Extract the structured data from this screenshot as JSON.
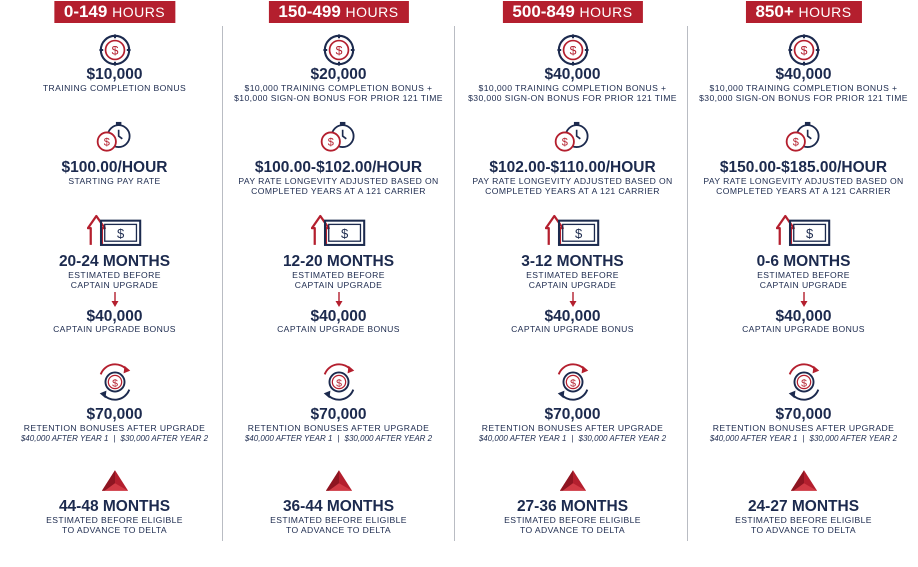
{
  "colors": {
    "navy": "#1c2a4e",
    "red": "#b41f2e",
    "divider": "#b9bcc3"
  },
  "icons": [
    "coin-target-icon",
    "coin-stopwatch-icon",
    "money-upgrade-icon",
    "down-arrow-icon",
    "coin-cycle-icon",
    "delta-logo-icon"
  ],
  "columns": [
    {
      "range": "0-149",
      "range_unit": "HOURS",
      "bonus_amount": "$10,000",
      "bonus_desc": [
        "TRAINING COMPLETION BONUS"
      ],
      "pay_rate": "$100.00/HOUR",
      "pay_desc": [
        "STARTING PAY RATE"
      ],
      "upgrade_time": "20-24 MONTHS",
      "upgrade_desc": [
        "ESTIMATED BEFORE",
        "CAPTAIN UPGRADE"
      ],
      "upgrade_bonus": "$40,000",
      "upgrade_bonus_desc": "CAPTAIN UPGRADE BONUS",
      "retention_amount": "$70,000",
      "retention_desc": "RETENTION BONUSES AFTER UPGRADE",
      "retention_year1": "$40,000 AFTER YEAR 1",
      "retention_year2": "$30,000 AFTER YEAR 2",
      "delta_time": "44-48 MONTHS",
      "delta_desc": [
        "ESTIMATED BEFORE ELIGIBLE",
        "TO ADVANCE TO DELTA"
      ]
    },
    {
      "range": "150-499",
      "range_unit": "HOURS",
      "bonus_amount": "$20,000",
      "bonus_desc": [
        "$10,000 TRAINING COMPLETION BONUS +",
        "$10,000 SIGN-ON BONUS FOR PRIOR 121 TIME"
      ],
      "pay_rate": "$100.00-$102.00/HOUR",
      "pay_desc": [
        "PAY RATE LONGEVITY ADJUSTED BASED ON",
        "COMPLETED YEARS AT A 121 CARRIER"
      ],
      "upgrade_time": "12-20 MONTHS",
      "upgrade_desc": [
        "ESTIMATED BEFORE",
        "CAPTAIN UPGRADE"
      ],
      "upgrade_bonus": "$40,000",
      "upgrade_bonus_desc": "CAPTAIN UPGRADE BONUS",
      "retention_amount": "$70,000",
      "retention_desc": "RETENTION BONUSES AFTER UPGRADE",
      "retention_year1": "$40,000 AFTER YEAR 1",
      "retention_year2": "$30,000 AFTER YEAR 2",
      "delta_time": "36-44 MONTHS",
      "delta_desc": [
        "ESTIMATED BEFORE ELIGIBLE",
        "TO ADVANCE TO DELTA"
      ]
    },
    {
      "range": "500-849",
      "range_unit": "HOURS",
      "bonus_amount": "$40,000",
      "bonus_desc": [
        "$10,000 TRAINING COMPLETION BONUS +",
        "$30,000 SIGN-ON BONUS FOR PRIOR 121 TIME"
      ],
      "pay_rate": "$102.00-$110.00/HOUR",
      "pay_desc": [
        "PAY RATE LONGEVITY ADJUSTED BASED ON",
        "COMPLETED YEARS AT A 121 CARRIER"
      ],
      "upgrade_time": "3-12 MONTHS",
      "upgrade_desc": [
        "ESTIMATED BEFORE",
        "CAPTAIN UPGRADE"
      ],
      "upgrade_bonus": "$40,000",
      "upgrade_bonus_desc": "CAPTAIN UPGRADE BONUS",
      "retention_amount": "$70,000",
      "retention_desc": "RETENTION BONUSES AFTER UPGRADE",
      "retention_year1": "$40,000 AFTER YEAR 1",
      "retention_year2": "$30,000 AFTER YEAR 2",
      "delta_time": "27-36 MONTHS",
      "delta_desc": [
        "ESTIMATED BEFORE ELIGIBLE",
        "TO ADVANCE TO DELTA"
      ]
    },
    {
      "range": "850+",
      "range_unit": "HOURS",
      "bonus_amount": "$40,000",
      "bonus_desc": [
        "$10,000 TRAINING COMPLETION BONUS +",
        "$30,000 SIGN-ON BONUS FOR PRIOR 121 TIME"
      ],
      "pay_rate": "$150.00-$185.00/HOUR",
      "pay_desc": [
        "PAY RATE LONGEVITY ADJUSTED BASED ON",
        "COMPLETED YEARS AT A 121 CARRIER"
      ],
      "upgrade_time": "0-6 MONTHS",
      "upgrade_desc": [
        "ESTIMATED BEFORE",
        "CAPTAIN UPGRADE"
      ],
      "upgrade_bonus": "$40,000",
      "upgrade_bonus_desc": "CAPTAIN UPGRADE BONUS",
      "retention_amount": "$70,000",
      "retention_desc": "RETENTION BONUSES AFTER UPGRADE",
      "retention_year1": "$40,000 AFTER YEAR 1",
      "retention_year2": "$30,000 AFTER YEAR 2",
      "delta_time": "24-27 MONTHS",
      "delta_desc": [
        "ESTIMATED BEFORE ELIGIBLE",
        "TO ADVANCE TO DELTA"
      ]
    }
  ]
}
